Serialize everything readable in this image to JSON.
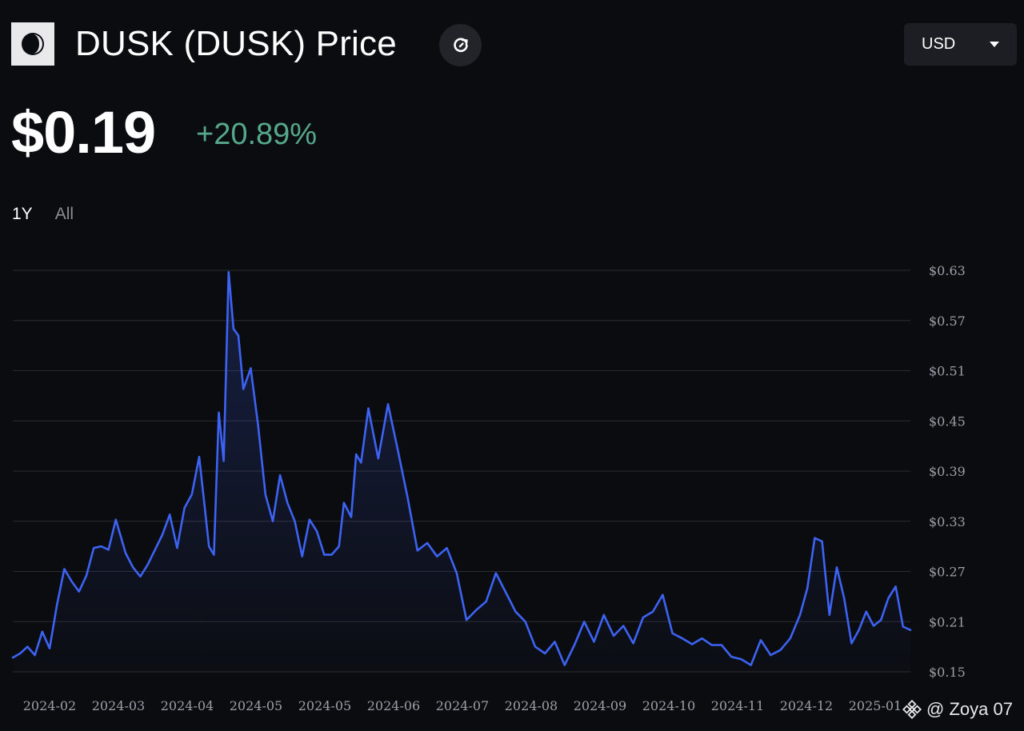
{
  "header": {
    "title": "DUSK (DUSK) Price",
    "logo_icon": "dusk-moon-logo-icon",
    "refresh_icon": "refresh-icon"
  },
  "currency": {
    "selected": "USD"
  },
  "price": {
    "value": "$0.19",
    "change": "+20.89%"
  },
  "range_tabs": [
    {
      "label": "1Y",
      "active": true
    },
    {
      "label": "All",
      "active": false
    }
  ],
  "watermark": {
    "text": "@ Zoya 07",
    "icon": "binance-logo-icon"
  },
  "colors": {
    "line": "#3d63f5",
    "positive": "#56a88a",
    "background": "#0b0c0f",
    "grid": "#2a2c31"
  },
  "chart_data": {
    "type": "area",
    "title": "",
    "xlabel": "",
    "ylabel": "",
    "x_start": "2024-01-15",
    "x_end": "2025-01-15",
    "ylim": [
      0.15,
      0.63
    ],
    "y_ticks": [
      "$0.63",
      "$0.57",
      "$0.51",
      "$0.45",
      "$0.39",
      "$0.33",
      "$0.27",
      "$0.21",
      "$0.15"
    ],
    "x_tick_labels": [
      "2024-02",
      "2024-03",
      "2024-04",
      "2024-05",
      "2024-05",
      "2024-06",
      "2024-07",
      "2024-08",
      "2024-09",
      "2024-10",
      "2024-11",
      "2024-12",
      "2025-01"
    ],
    "grid": true,
    "legend": "none",
    "series": [
      {
        "dates": [
          "2024-01-15",
          "2024-01-18",
          "2024-01-21",
          "2024-01-24",
          "2024-01-27",
          "2024-01-30",
          "2024-02-02",
          "2024-02-05",
          "2024-02-08",
          "2024-02-11",
          "2024-02-14",
          "2024-02-17",
          "2024-02-20",
          "2024-02-23",
          "2024-02-26",
          "2024-03-01",
          "2024-03-04",
          "2024-03-07",
          "2024-03-10",
          "2024-03-13",
          "2024-03-16",
          "2024-03-19",
          "2024-03-22",
          "2024-03-25",
          "2024-03-28",
          "2024-03-31",
          "2024-04-02",
          "2024-04-04",
          "2024-04-06",
          "2024-04-08",
          "2024-04-10",
          "2024-04-12",
          "2024-04-14",
          "2024-04-16",
          "2024-04-18",
          "2024-04-21",
          "2024-04-24",
          "2024-04-27",
          "2024-04-30",
          "2024-05-03",
          "2024-05-06",
          "2024-05-09",
          "2024-05-12",
          "2024-05-15",
          "2024-05-18",
          "2024-05-21",
          "2024-05-24",
          "2024-05-27",
          "2024-05-29",
          "2024-06-01",
          "2024-06-03",
          "2024-06-05",
          "2024-06-08",
          "2024-06-12",
          "2024-06-16",
          "2024-06-20",
          "2024-06-24",
          "2024-06-28",
          "2024-07-02",
          "2024-07-06",
          "2024-07-10",
          "2024-07-14",
          "2024-07-18",
          "2024-07-22",
          "2024-07-26",
          "2024-07-30",
          "2024-08-03",
          "2024-08-07",
          "2024-08-11",
          "2024-08-15",
          "2024-08-19",
          "2024-08-23",
          "2024-08-27",
          "2024-08-31",
          "2024-09-04",
          "2024-09-08",
          "2024-09-12",
          "2024-09-16",
          "2024-09-20",
          "2024-09-24",
          "2024-09-28",
          "2024-10-02",
          "2024-10-06",
          "2024-10-10",
          "2024-10-14",
          "2024-10-18",
          "2024-10-22",
          "2024-10-26",
          "2024-10-30",
          "2024-11-03",
          "2024-11-07",
          "2024-11-11",
          "2024-11-15",
          "2024-11-19",
          "2024-11-23",
          "2024-11-27",
          "2024-12-01",
          "2024-12-04",
          "2024-12-07",
          "2024-12-10",
          "2024-12-13",
          "2024-12-16",
          "2024-12-19",
          "2024-12-22",
          "2024-12-25",
          "2024-12-28",
          "2024-12-31",
          "2025-01-03",
          "2025-01-06",
          "2025-01-09",
          "2025-01-12",
          "2025-01-15"
        ],
        "values": [
          0.167,
          0.172,
          0.18,
          0.17,
          0.198,
          0.178,
          0.23,
          0.273,
          0.258,
          0.246,
          0.265,
          0.298,
          0.3,
          0.296,
          0.332,
          0.292,
          0.275,
          0.264,
          0.278,
          0.296,
          0.314,
          0.338,
          0.298,
          0.346,
          0.362,
          0.407,
          0.354,
          0.3,
          0.29,
          0.46,
          0.402,
          0.628,
          0.56,
          0.552,
          0.488,
          0.513,
          0.445,
          0.362,
          0.33,
          0.385,
          0.352,
          0.33,
          0.288,
          0.332,
          0.318,
          0.29,
          0.29,
          0.3,
          0.352,
          0.335,
          0.41,
          0.4,
          0.465,
          0.405,
          0.47,
          0.415,
          0.358,
          0.295,
          0.304,
          0.288,
          0.298,
          0.268,
          0.212,
          0.224,
          0.234,
          0.268,
          0.245,
          0.222,
          0.21,
          0.18,
          0.172,
          0.186,
          0.158,
          0.182,
          0.21,
          0.186,
          0.218,
          0.193,
          0.205,
          0.184,
          0.215,
          0.222,
          0.242,
          0.196,
          0.19,
          0.183,
          0.19,
          0.182,
          0.182,
          0.168,
          0.165,
          0.158,
          0.188,
          0.17,
          0.176,
          0.19,
          0.218,
          0.25,
          0.31,
          0.306,
          0.218,
          0.275,
          0.238,
          0.184,
          0.2,
          0.222,
          0.205,
          0.212,
          0.238,
          0.252,
          0.204,
          0.2
        ]
      }
    ]
  }
}
